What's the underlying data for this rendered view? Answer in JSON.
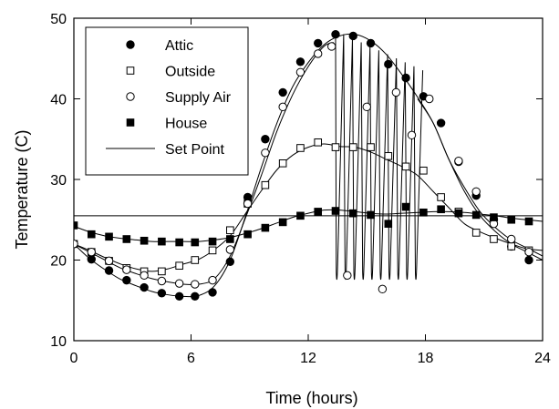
{
  "chart_data": {
    "type": "line",
    "title": "",
    "xlabel": "Time (hours)",
    "ylabel": "Temperature (C)",
    "xlim": [
      0,
      24
    ],
    "ylim": [
      10,
      50
    ],
    "xticks": [
      0,
      6,
      12,
      18,
      24
    ],
    "yticks": [
      10,
      20,
      30,
      40,
      50
    ],
    "grid": false,
    "legend_position": "top-left",
    "series": [
      {
        "name": "Attic",
        "marker": "filled-circle",
        "x": [
          0,
          0.8,
          1.6,
          2.4,
          3.2,
          4.0,
          4.8,
          5.6,
          6.4,
          7.2,
          8.0,
          8.8,
          9.6,
          10.4,
          11.2,
          12.0,
          12.8,
          13.6,
          14.4,
          15.2,
          16.0,
          16.8,
          17.6,
          18.4,
          19.2,
          20.0,
          20.8,
          21.6,
          22.4,
          23.2,
          24.0
        ],
        "y": [
          22.0,
          20.2,
          18.8,
          17.6,
          16.8,
          16.1,
          15.7,
          15.5,
          15.6,
          16.8,
          20.0,
          25.5,
          31.5,
          37.0,
          41.5,
          44.5,
          46.7,
          47.8,
          48.0,
          47.2,
          45.5,
          43.0,
          40.2,
          37.0,
          32.5,
          28.5,
          25.5,
          23.5,
          22.0,
          21.0,
          20.0
        ],
        "markers_x": [
          0,
          0.9,
          1.8,
          2.7,
          3.6,
          4.5,
          5.4,
          6.2,
          7.1,
          8.0,
          8.9,
          9.8,
          10.7,
          11.6,
          12.5,
          13.4,
          14.3,
          15.2,
          16.1,
          17.0,
          17.9,
          18.8,
          19.7,
          20.6,
          21.5,
          22.4,
          23.3
        ],
        "markers_y": [
          22.0,
          20.1,
          18.7,
          17.5,
          16.6,
          15.9,
          15.5,
          15.5,
          16.0,
          19.8,
          27.8,
          35.0,
          40.8,
          44.6,
          46.9,
          48.0,
          47.8,
          46.9,
          44.3,
          42.6,
          40.3,
          37.0,
          32.2,
          28.0,
          25.0,
          21.7,
          20.0
        ]
      },
      {
        "name": "Outside",
        "marker": "open-square",
        "x": [
          0,
          0.8,
          1.6,
          2.4,
          3.2,
          4.0,
          4.8,
          5.6,
          6.4,
          7.2,
          8.0,
          8.8,
          9.6,
          10.4,
          11.2,
          12.0,
          12.8,
          13.6,
          14.4,
          15.2,
          16.0,
          16.8,
          17.6,
          18.4,
          19.2,
          20.0,
          20.8,
          21.6,
          22.4,
          23.2,
          24.0
        ],
        "y": [
          22.0,
          21.2,
          20.3,
          19.5,
          18.9,
          18.6,
          18.9,
          19.5,
          20.1,
          21.3,
          23.0,
          25.8,
          28.6,
          31.2,
          33.0,
          34.0,
          34.4,
          34.1,
          34.0,
          33.4,
          32.5,
          31.6,
          30.5,
          28.5,
          26.5,
          24.5,
          23.5,
          22.7,
          22.0,
          21.4,
          21.2
        ],
        "markers_x": [
          0,
          0.9,
          1.8,
          2.7,
          3.6,
          4.5,
          5.4,
          6.2,
          7.1,
          8.0,
          8.9,
          9.8,
          10.7,
          11.6,
          12.5,
          13.4,
          14.3,
          15.2,
          16.1,
          17.0,
          17.9,
          18.8,
          19.7,
          20.6,
          21.5,
          22.4,
          23.3
        ],
        "markers_y": [
          22.0,
          21.0,
          19.9,
          19.0,
          18.6,
          18.6,
          19.3,
          20.0,
          21.2,
          23.7,
          27.0,
          29.3,
          32.0,
          33.9,
          34.6,
          34.0,
          34.0,
          34.0,
          32.9,
          31.6,
          31.1,
          27.8,
          26.0,
          23.4,
          22.6,
          21.7,
          21.2
        ]
      },
      {
        "name": "Supply Air",
        "marker": "open-circle",
        "x": [
          0,
          0.8,
          1.6,
          2.4,
          3.2,
          4.0,
          4.8,
          5.6,
          6.4,
          7.2,
          8.0,
          8.8,
          9.6,
          10.4,
          11.2,
          12.0,
          12.8,
          13.3
        ],
        "y": [
          22.0,
          21.0,
          20.0,
          19.0,
          18.3,
          17.7,
          17.3,
          17.0,
          17.0,
          17.7,
          20.5,
          25.3,
          30.5,
          36.0,
          40.5,
          44.0,
          46.5,
          47.0
        ],
        "x_after": [
          17.6,
          18.4,
          19.2,
          20.0,
          20.8,
          21.6,
          22.4,
          23.2,
          24.0
        ],
        "y_after": [
          40.0,
          37.0,
          32.5,
          29.0,
          26.0,
          24.0,
          22.5,
          21.5,
          20.5
        ],
        "markers_x": [
          0,
          0.9,
          1.8,
          2.7,
          3.6,
          4.5,
          5.4,
          6.2,
          7.1,
          8.0,
          8.9,
          9.8,
          10.7,
          11.6,
          12.5,
          13.2,
          14.0,
          15.0,
          15.8,
          16.5,
          17.3,
          18.2,
          19.7,
          20.6,
          21.5,
          22.4,
          23.3
        ],
        "markers_y": [
          22.0,
          21.0,
          19.9,
          18.8,
          18.1,
          17.4,
          17.1,
          17.0,
          17.5,
          21.3,
          27.0,
          33.3,
          39.0,
          43.3,
          45.6,
          46.5,
          18.1,
          39.0,
          16.4,
          40.8,
          35.5,
          40.0,
          32.3,
          28.5,
          24.5,
          22.6,
          21.0
        ]
      },
      {
        "name": "House",
        "marker": "filled-square",
        "x": [
          0,
          0.8,
          1.6,
          2.4,
          3.2,
          4.0,
          4.8,
          5.6,
          6.4,
          7.2,
          8.0,
          8.8,
          9.6,
          10.4,
          11.2,
          12.0,
          12.8,
          13.6,
          14.4,
          15.2,
          16.0,
          16.8,
          17.6,
          18.4,
          19.2,
          20.0,
          20.8,
          21.6,
          22.4,
          23.2,
          24.0
        ],
        "y": [
          24.2,
          23.5,
          23.0,
          22.7,
          22.5,
          22.3,
          22.3,
          22.3,
          22.3,
          22.5,
          22.8,
          23.3,
          23.9,
          24.6,
          25.3,
          25.8,
          26.2,
          26.2,
          26.0,
          25.8,
          25.7,
          25.8,
          25.9,
          26.0,
          26.0,
          25.9,
          25.7,
          25.5,
          25.2,
          25.0,
          24.8
        ],
        "markers_x": [
          0,
          0.9,
          1.8,
          2.7,
          3.6,
          4.5,
          5.4,
          6.2,
          7.1,
          8.0,
          8.9,
          9.8,
          10.7,
          11.6,
          12.5,
          13.4,
          14.3,
          15.2,
          16.1,
          17.0,
          17.9,
          18.8,
          19.7,
          20.6,
          21.5,
          22.4,
          23.3
        ],
        "markers_y": [
          24.3,
          23.2,
          22.9,
          22.6,
          22.4,
          22.3,
          22.2,
          22.2,
          22.3,
          22.6,
          23.2,
          24.0,
          24.7,
          25.5,
          26.0,
          26.1,
          25.8,
          25.6,
          24.5,
          26.6,
          25.9,
          26.3,
          25.8,
          25.6,
          25.3,
          25.0,
          24.8
        ]
      },
      {
        "name": "Set Point",
        "marker": "none",
        "x": [
          0,
          24
        ],
        "y": [
          25.5,
          25.5
        ]
      }
    ],
    "cycling": {
      "series": "Supply Air",
      "x_start": 13.4,
      "x_end": 17.5,
      "period": 0.45,
      "low": 16.5,
      "high": 48.0
    }
  }
}
